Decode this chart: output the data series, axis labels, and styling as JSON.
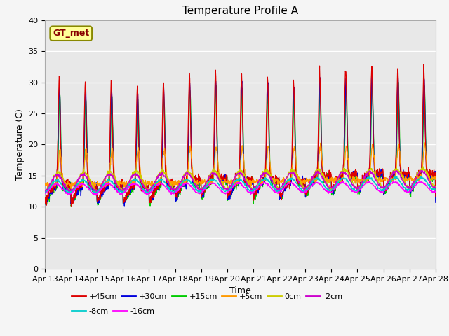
{
  "title": "Temperature Profile A",
  "xlabel": "Time",
  "ylabel": "Temperature (C)",
  "ylim": [
    0,
    40
  ],
  "x_tick_labels": [
    "Apr 13",
    "Apr 14",
    "Apr 15",
    "Apr 16",
    "Apr 17",
    "Apr 18",
    "Apr 19",
    "Apr 20",
    "Apr 21",
    "Apr 22",
    "Apr 23",
    "Apr 24",
    "Apr 25",
    "Apr 26",
    "Apr 27",
    "Apr 28"
  ],
  "series_labels": [
    "+45cm",
    "+30cm",
    "+15cm",
    "+5cm",
    "0cm",
    "-2cm",
    "-8cm",
    "-16cm"
  ],
  "series_colors": [
    "#dd0000",
    "#0000dd",
    "#00cc00",
    "#ff9900",
    "#cccc00",
    "#cc00cc",
    "#00cccc",
    "#ff00ff"
  ],
  "gt_met_label": "GT_met",
  "gt_met_box_color": "#ffff99",
  "gt_met_text_color": "#880000",
  "background_color": "#e8e8e8",
  "grid_color": "#ffffff",
  "title_fontsize": 11,
  "axis_label_fontsize": 9,
  "tick_fontsize": 8,
  "legend_fontsize": 8
}
